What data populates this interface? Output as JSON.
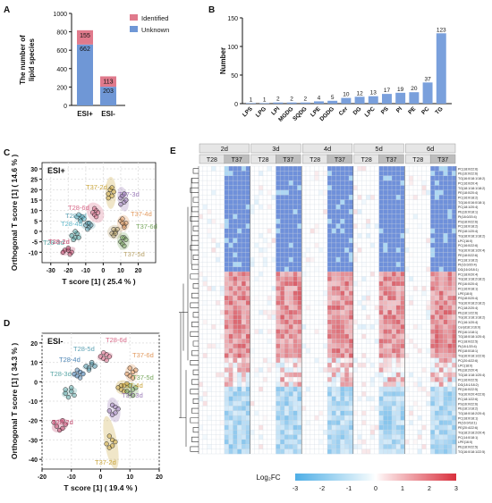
{
  "panels": {
    "A": {
      "letter": "A",
      "ylabel": "The number of\nlipid species",
      "yticks": [
        "0",
        "200",
        "400",
        "600",
        "800",
        "1000"
      ],
      "legend": [
        {
          "label": "Identified",
          "color": "#e07a8c"
        },
        {
          "label": "Unknown",
          "color": "#6f97d6"
        }
      ]
    },
    "B": {
      "letter": "B",
      "ylabel": "Number",
      "yticks": [
        "0",
        "50",
        "100",
        "150"
      ]
    },
    "C": {
      "letter": "C",
      "tag": "ESI+",
      "xlabel": "T score [1] ( 25.4 % )",
      "ylabel": "Orthogonal T score [1] ( 14.6 % )",
      "xticks": [
        "-30",
        "-20",
        "-10",
        "0",
        "10",
        "20"
      ],
      "yticks": [
        "-10",
        "-5",
        "0",
        "5",
        "10",
        "15",
        "20",
        "25",
        "30"
      ],
      "labels": [
        {
          "text": "T37-2d",
          "color": "#c9a43a"
        },
        {
          "text": "T37-3d",
          "color": "#9b7bb8"
        },
        {
          "text": "T28-6d",
          "color": "#d86b8a"
        },
        {
          "text": "T28-4d",
          "color": "#62b8c9"
        },
        {
          "text": "T28-5d",
          "color": "#5fa3b5"
        },
        {
          "text": "T37-4d",
          "color": "#e29a5f"
        },
        {
          "text": "T28-3d",
          "color": "#5aa6a6"
        },
        {
          "text": "T37-6d",
          "color": "#7aa860"
        },
        {
          "text": "T37-5d",
          "color": "#b9a36a"
        },
        {
          "text": "T28-2d",
          "color": "#c0436a"
        }
      ]
    },
    "D": {
      "letter": "D",
      "tag": "ESI-",
      "xlabel": "T score [1] ( 19.4 % )",
      "ylabel": "Orthogonal T score [1] ( 34.3 % )",
      "xticks": [
        "-20",
        "-10",
        "0",
        "10",
        "20"
      ],
      "yticks": [
        "-40",
        "-30",
        "-20",
        "-10",
        "0",
        "10",
        "20"
      ],
      "labels": [
        {
          "text": "T28-6d",
          "color": "#d86b8a"
        },
        {
          "text": "T28-5d",
          "color": "#5fa3b5"
        },
        {
          "text": "T28-4d",
          "color": "#4e86b5"
        },
        {
          "text": "T37-6d",
          "color": "#e29a5f"
        },
        {
          "text": "T37-4d",
          "color": "#c9a43a"
        },
        {
          "text": "T37-5d",
          "color": "#7aa860"
        },
        {
          "text": "T28-3d",
          "color": "#5aa6a6"
        },
        {
          "text": "T37-3d",
          "color": "#9b7bb8"
        },
        {
          "text": "T28-2d",
          "color": "#c0436a"
        },
        {
          "text": "T37-2d",
          "color": "#c9a43a"
        }
      ]
    },
    "E": {
      "letter": "E",
      "days": [
        "2d",
        "3d",
        "4d",
        "5d",
        "6d"
      ],
      "groups": [
        "T28",
        "T37"
      ],
      "colorbar_label": "Log₂FC",
      "colorbar_ticks": [
        "-3",
        "-2",
        "-1",
        "0",
        "1",
        "2",
        "3"
      ],
      "row_labels": [
        "PC(18:0/22:6)",
        "PE(16:0/22:6)",
        "TG(16:0/18:1/18:2)",
        "PC(16:0/20:4)",
        "TG(18:1/18:1/18:2)",
        "PE(18:0/20:4)",
        "PC(16:0/18:2)",
        "TG(16:0/16:0/18:1)",
        "PC(18:1/20:4)",
        "PE(16:0/18:1)",
        "PI(18:0/20:4)",
        "PS(18:0/22:6)",
        "PC(18:0/18:2)",
        "PE(18:1/20:4)",
        "TG(18:0/18:1/18:2)",
        "LPC(16:0)",
        "PC(16:0/22:6)",
        "TG(16:0/18:1/20:4)",
        "PE(18:0/22:6)",
        "PC(18:1/18:2)",
        "PI(16:0/20:4)",
        "DG(16:0/18:1)",
        "PC(18:0/20:4)",
        "TG(18:1/18:2/18:2)",
        "PE(16:0/20:4)",
        "PC(16:0/18:1)",
        "LPE(18:0)",
        "PS(18:0/20:4)",
        "TG(16:0/18:2/18:2)",
        "PC(18:2/20:4)",
        "PE(18:1/22:6)",
        "TG(16:1/18:1/18:2)",
        "PC(16:1/20:4)",
        "Cer(d18:1/16:0)",
        "PE(16:1/18:1)",
        "TG(18:0/18:1/20:4)",
        "PC(18:0/22:5)",
        "PI(18:1/20:4)",
        "PE(18:0/18:1)",
        "TG(16:0/18:1/22:6)",
        "PC(20:4/22:6)",
        "LPC(18:0)",
        "PE(18:2/20:4)",
        "TG(18:1/18:1/20:4)",
        "PC(16:0/22:5)",
        "DG(18:1/18:2)",
        "PE(16:0/22:5)",
        "TG(16:0/20:4/22:6)",
        "PC(18:1/22:6)",
        "PS(16:0/22:6)",
        "PE(18:1/18:2)",
        "TG(18:0/18:2/20:4)",
        "PC(18:0/18:1)",
        "PI(16:0/18:1)",
        "PE(20:4/22:6)",
        "TG(18:2/18:2/20:4)",
        "PC(14:0/18:1)",
        "LPE(16:0)",
        "PE(18:0/22:5)",
        "TG(16:0/18:1/22:5)"
      ]
    }
  },
  "chart_data": [
    {
      "type": "bar",
      "panel": "A",
      "categories": [
        "ESI+",
        "ESI-"
      ],
      "series": [
        {
          "name": "Unknown",
          "values": [
            662,
            203
          ]
        },
        {
          "name": "Identified",
          "values": [
            155,
            113
          ]
        }
      ],
      "stacked": true,
      "ylabel": "The number of lipid species",
      "ylim": [
        0,
        1000
      ],
      "legend": "top-right"
    },
    {
      "type": "bar",
      "panel": "B",
      "categories": [
        "LPS",
        "LPG",
        "LPI",
        "MGDG",
        "SQDG",
        "LPE",
        "DGDG",
        "Cer",
        "DG",
        "LPC",
        "PS",
        "PI",
        "PE",
        "PC",
        "TG"
      ],
      "values": [
        1,
        1,
        2,
        2,
        2,
        4,
        5,
        10,
        12,
        13,
        17,
        19,
        20,
        37,
        123
      ],
      "ylabel": "Number",
      "ylim": [
        0,
        150
      ]
    },
    {
      "type": "scatter",
      "panel": "C",
      "title": "ESI+",
      "xlabel": "T score [1] ( 25.4 % )",
      "ylabel": "Orthogonal T score [1] ( 14.6 % )",
      "xlim": [
        -35,
        30
      ],
      "ylim": [
        -15,
        33
      ],
      "grid": true,
      "series": [
        {
          "name": "T28-2d",
          "color": "#c0436a",
          "points": [
            [
              -22,
              -9
            ],
            [
              -20,
              -9
            ],
            [
              -18,
              -10
            ],
            [
              -20,
              -8
            ],
            [
              -23,
              -10
            ],
            [
              -19,
              -11
            ]
          ]
        },
        {
          "name": "T28-3d",
          "color": "#5aa6a6",
          "points": [
            [
              -18,
              -2
            ],
            [
              -16,
              -3
            ],
            [
              -15,
              -1
            ],
            [
              -14,
              -3
            ],
            [
              -17,
              -4
            ],
            [
              -16,
              0
            ]
          ]
        },
        {
          "name": "T28-4d",
          "color": "#62b8c9",
          "points": [
            [
              -15,
              7
            ],
            [
              -13,
              6
            ],
            [
              -12,
              7
            ],
            [
              -14,
              8
            ],
            [
              -13,
              5
            ],
            [
              -11,
              6
            ]
          ]
        },
        {
          "name": "T28-5d",
          "color": "#5fa3b5",
          "points": [
            [
              -10,
              3
            ],
            [
              -9,
              4
            ],
            [
              -8,
              2
            ],
            [
              -9,
              1
            ],
            [
              -7,
              3
            ],
            [
              -8,
              4
            ]
          ]
        },
        {
          "name": "T28-6d",
          "color": "#d86b8a",
          "points": [
            [
              -6,
              9
            ],
            [
              -4,
              10
            ],
            [
              -5,
              8
            ],
            [
              -3,
              9
            ],
            [
              -4,
              7
            ],
            [
              -5,
              11
            ]
          ]
        },
        {
          "name": "T37-2d",
          "color": "#c9a43a",
          "points": [
            [
              3,
              18
            ],
            [
              5,
              17
            ],
            [
              4,
              20
            ],
            [
              6,
              19
            ],
            [
              3,
              16
            ],
            [
              5,
              21
            ]
          ]
        },
        {
          "name": "T37-3d",
          "color": "#9b7bb8",
          "points": [
            [
              10,
              16
            ],
            [
              12,
              14
            ],
            [
              11,
              17
            ],
            [
              13,
              15
            ],
            [
              12,
              18
            ],
            [
              10,
              13
            ]
          ]
        },
        {
          "name": "T37-4d",
          "color": "#e29a5f",
          "points": [
            [
              10,
              5
            ],
            [
              12,
              3
            ],
            [
              11,
              6
            ],
            [
              13,
              4
            ],
            [
              12,
              2
            ],
            [
              11,
              4
            ]
          ]
        },
        {
          "name": "T37-5d",
          "color": "#b9a36a",
          "points": [
            [
              5,
              -1
            ],
            [
              7,
              0
            ],
            [
              6,
              -2
            ],
            [
              8,
              1
            ],
            [
              6,
              1
            ],
            [
              7,
              -1
            ]
          ]
        },
        {
          "name": "T37-6d",
          "color": "#7aa860",
          "points": [
            [
              10,
              -5
            ],
            [
              12,
              -3
            ],
            [
              11,
              -6
            ],
            [
              13,
              -4
            ],
            [
              12,
              -7
            ],
            [
              11,
              -3
            ]
          ]
        }
      ]
    },
    {
      "type": "scatter",
      "panel": "D",
      "title": "ESI-",
      "xlabel": "T score [1] ( 19.4 % )",
      "ylabel": "Orthogonal T score [1] ( 34.3 % )",
      "xlim": [
        -20,
        20
      ],
      "ylim": [
        -45,
        25
      ],
      "grid": true,
      "series": [
        {
          "name": "T28-2d",
          "color": "#c0436a",
          "points": [
            [
              -15,
              -23
            ],
            [
              -13,
              -20
            ],
            [
              -14,
              -25
            ],
            [
              -12,
              -22
            ],
            [
              -16,
              -21
            ],
            [
              -13,
              -24
            ]
          ]
        },
        {
          "name": "T28-3d",
          "color": "#5aa6a6",
          "points": [
            [
              -12,
              -6
            ],
            [
              -10,
              -5
            ],
            [
              -11,
              -8
            ],
            [
              -9,
              -7
            ],
            [
              -12,
              -4
            ],
            [
              -10,
              -3
            ]
          ]
        },
        {
          "name": "T28-4d",
          "color": "#4e86b5",
          "points": [
            [
              -9,
              4
            ],
            [
              -7,
              5
            ],
            [
              -8,
              3
            ],
            [
              -6,
              4
            ],
            [
              -7,
              2
            ],
            [
              -8,
              6
            ]
          ]
        },
        {
          "name": "T28-5d",
          "color": "#5fa3b5",
          "points": [
            [
              -5,
              8
            ],
            [
              -3,
              9
            ],
            [
              -4,
              7
            ],
            [
              -2,
              8
            ],
            [
              -3,
              10
            ],
            [
              -4,
              6
            ]
          ]
        },
        {
          "name": "T28-6d",
          "color": "#d86b8a",
          "points": [
            [
              0,
              13
            ],
            [
              2,
              14
            ],
            [
              1,
              12
            ],
            [
              3,
              13
            ],
            [
              1,
              15
            ],
            [
              2,
              11
            ]
          ]
        },
        {
          "name": "T37-2d",
          "color": "#c9a43a",
          "points": [
            [
              2,
              -32
            ],
            [
              4,
              -30
            ],
            [
              3,
              -34
            ],
            [
              5,
              -31
            ],
            [
              3,
              -28
            ],
            [
              4,
              -33
            ]
          ]
        },
        {
          "name": "T37-3d",
          "color": "#9b7bb8",
          "points": [
            [
              3,
              -15
            ],
            [
              5,
              -13
            ],
            [
              4,
              -17
            ],
            [
              6,
              -14
            ],
            [
              4,
              -12
            ],
            [
              5,
              -16
            ]
          ]
        },
        {
          "name": "T37-4d",
          "color": "#c9a43a",
          "points": [
            [
              6,
              -3
            ],
            [
              8,
              -2
            ],
            [
              7,
              -4
            ],
            [
              9,
              -1
            ],
            [
              7,
              -2
            ],
            [
              8,
              -5
            ]
          ]
        },
        {
          "name": "T37-5d",
          "color": "#7aa860",
          "points": [
            [
              9,
              -5
            ],
            [
              11,
              -4
            ],
            [
              10,
              -6
            ],
            [
              12,
              -3
            ],
            [
              10,
              -2
            ],
            [
              11,
              -7
            ]
          ]
        },
        {
          "name": "T37-6d",
          "color": "#e29a5f",
          "points": [
            [
              9,
              4
            ],
            [
              11,
              5
            ],
            [
              10,
              3
            ],
            [
              12,
              6
            ],
            [
              10,
              7
            ],
            [
              11,
              2
            ]
          ]
        }
      ]
    },
    {
      "type": "heatmap",
      "panel": "E",
      "rows": 60,
      "columns": [
        "T28-2d",
        "T37-2d",
        "T28-3d",
        "T37-3d",
        "T28-4d",
        "T37-4d",
        "T28-5d",
        "T37-5d",
        "T28-6d",
        "T37-6d"
      ],
      "replicates_per_group": 6,
      "value_label": "Log2FC",
      "zlim": [
        -3,
        3
      ],
      "colors": {
        "low": "#5aaee0",
        "mid": "#ffffff",
        "high": "#d9535b",
        "strong_low": "#6b8fd9"
      }
    }
  ]
}
